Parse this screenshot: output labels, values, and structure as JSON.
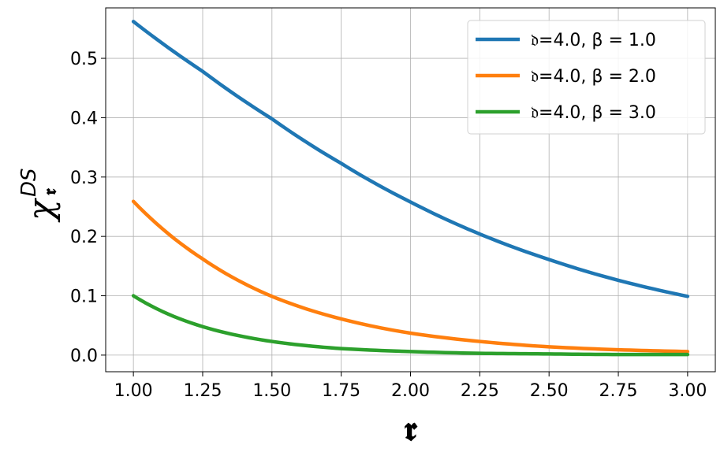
{
  "chart_data": {
    "type": "line",
    "xlabel": "𝖗",
    "ylabel": {
      "base": "χ",
      "sup": "DS",
      "sub": "𝖗"
    },
    "xlim": [
      0.9,
      3.1
    ],
    "ylim": [
      -0.028,
      0.585
    ],
    "grid": true,
    "legend_position": "top-right",
    "x_ticks": [
      "1.00",
      "1.25",
      "1.50",
      "1.75",
      "2.00",
      "2.25",
      "2.50",
      "2.75",
      "3.00"
    ],
    "y_ticks": [
      "0.0",
      "0.1",
      "0.2",
      "0.3",
      "0.4",
      "0.5"
    ],
    "x": [
      1.0,
      1.25,
      1.5,
      1.75,
      2.0,
      2.25,
      2.5,
      2.75,
      3.0
    ],
    "series": [
      {
        "name": "𝔡=4.0, β = 1.0",
        "color": "#1f77b4",
        "values": [
          0.562,
          0.478,
          0.398,
          0.323,
          0.258,
          0.204,
          0.161,
          0.126,
          0.099
        ]
      },
      {
        "name": "𝔡=4.0, β = 2.0",
        "color": "#ff7f0e",
        "values": [
          0.259,
          0.162,
          0.099,
          0.061,
          0.037,
          0.023,
          0.014,
          0.009,
          0.006
        ]
      },
      {
        "name": "𝔡=4.0, β = 3.0",
        "color": "#2ca02c",
        "values": [
          0.1,
          0.048,
          0.023,
          0.011,
          0.006,
          0.003,
          0.002,
          0.001,
          0.001
        ]
      }
    ]
  }
}
